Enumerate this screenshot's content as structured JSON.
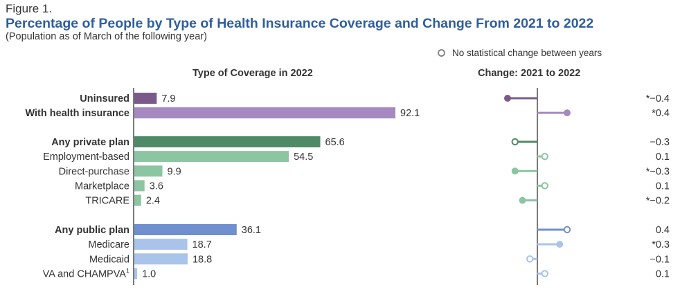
{
  "figure_label": "Figure 1.",
  "chart_data": {
    "type": "bar",
    "title": "Percentage of People by Type of Health Insurance Coverage and Change From 2021 to 2022",
    "subtitle": "(Population as of March of the following year)",
    "legend": {
      "label": "No statistical change between years",
      "placement": "top-right"
    },
    "panels": {
      "left_title": "Type of Coverage in 2022",
      "right_title": "Change: 2021 to 2022"
    },
    "colors": {
      "uninsured": "#7b5a8a",
      "health_insurance": "#a689c1",
      "private_dark": "#4f8a66",
      "private_light": "#8cc5a2",
      "public_dark": "#6f8fce",
      "public_light": "#a9c3ea"
    },
    "xlim": [
      0,
      100
    ],
    "change_lim": [
      -0.5,
      0.5
    ],
    "groups": [
      {
        "name": "insurance",
        "rows": [
          {
            "category": "Uninsured",
            "bold": true,
            "value": 7.9,
            "value_label": "7.9",
            "change": -0.4,
            "change_label": "*−0.4",
            "significant": true,
            "color": "#7b5a8a"
          },
          {
            "category": "With health insurance",
            "bold": true,
            "value": 92.1,
            "value_label": "92.1",
            "change": 0.4,
            "change_label": "*0.4",
            "significant": true,
            "color": "#a689c1"
          }
        ]
      },
      {
        "name": "private",
        "rows": [
          {
            "category": "Any private plan",
            "bold": true,
            "value": 65.6,
            "value_label": "65.6",
            "change": -0.3,
            "change_label": "−0.3",
            "significant": false,
            "color": "#4f8a66"
          },
          {
            "category": "Employment-based",
            "bold": false,
            "value": 54.5,
            "value_label": "54.5",
            "change": 0.1,
            "change_label": "0.1",
            "significant": false,
            "color": "#8cc5a2"
          },
          {
            "category": "Direct-purchase",
            "bold": false,
            "value": 9.9,
            "value_label": "9.9",
            "change": -0.3,
            "change_label": "*−0.3",
            "significant": true,
            "color": "#8cc5a2"
          },
          {
            "category": "Marketplace",
            "bold": false,
            "value": 3.6,
            "value_label": "3.6",
            "change": 0.1,
            "change_label": "0.1",
            "significant": false,
            "color": "#8cc5a2"
          },
          {
            "category": "TRICARE",
            "bold": false,
            "value": 2.4,
            "value_label": "2.4",
            "change": -0.2,
            "change_label": "*−0.2",
            "significant": true,
            "color": "#8cc5a2"
          }
        ]
      },
      {
        "name": "public",
        "rows": [
          {
            "category": "Any public plan",
            "bold": true,
            "value": 36.1,
            "value_label": "36.1",
            "change": 0.4,
            "change_label": "0.4",
            "significant": false,
            "color": "#6f8fce"
          },
          {
            "category": "Medicare",
            "bold": false,
            "value": 18.7,
            "value_label": "18.7",
            "change": 0.3,
            "change_label": "*0.3",
            "significant": true,
            "color": "#a9c3ea"
          },
          {
            "category": "Medicaid",
            "bold": false,
            "value": 18.8,
            "value_label": "18.8",
            "change": -0.1,
            "change_label": "−0.1",
            "significant": false,
            "color": "#a9c3ea"
          },
          {
            "category": "VA and CHAMPVA",
            "footnote": "1",
            "bold": false,
            "value": 1.0,
            "value_label": "1.0",
            "change": 0.1,
            "change_label": "0.1",
            "significant": false,
            "color": "#a9c3ea"
          }
        ]
      }
    ]
  }
}
